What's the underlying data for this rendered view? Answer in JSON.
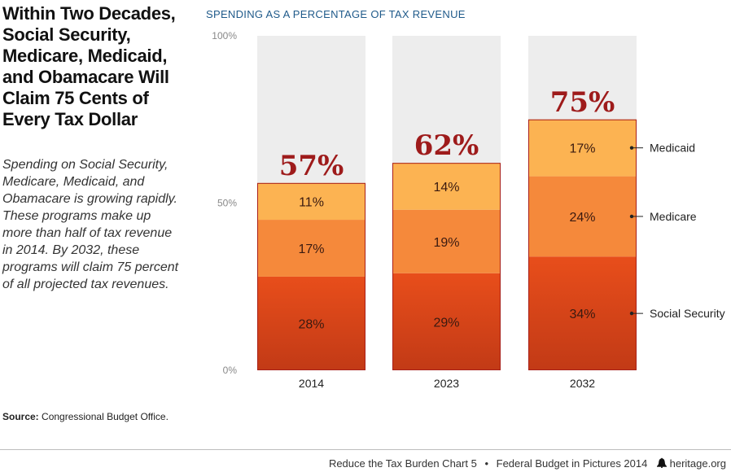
{
  "headline": "Within Two Decades, Social Security, Medicare, Medicaid, and Obamacare Will Claim 75 Cents of Every Tax Dollar",
  "description": "Spending on Social Security, Medicare, Medicaid, and Obamacare is growing rapidly. These programs make up more than half of tax revenue in 2014. By 2032, these programs will claim 75 percent of all projected tax revenues.",
  "source": {
    "label": "Source:",
    "text": "Congressional Budget Office."
  },
  "footer": {
    "chart_ref": "Reduce the Tax Burden Chart 5",
    "separator": "•",
    "publication": "Federal Budget in Pictures 2014",
    "site": "heritage.org",
    "logo_icon": "liberty-bell-icon"
  },
  "chart_data": {
    "type": "bar",
    "stacked": true,
    "title": "SPENDING AS A PERCENTAGE OF TAX REVENUE",
    "categories": [
      "2014",
      "2023",
      "2032"
    ],
    "ylim": [
      0,
      100
    ],
    "yticks": [
      0,
      50,
      100
    ],
    "ytick_labels": [
      "0%",
      "50%",
      "100%"
    ],
    "series": [
      {
        "name": "Social Security",
        "values": [
          28,
          29,
          34
        ],
        "labels": [
          "28%",
          "29%",
          "34%"
        ],
        "color": "#e84e1b"
      },
      {
        "name": "Medicare",
        "values": [
          17,
          19,
          24
        ],
        "labels": [
          "17%",
          "19%",
          "24%"
        ],
        "color": "#f5893b"
      },
      {
        "name": "Medicaid",
        "values": [
          11,
          14,
          17
        ],
        "labels": [
          "11%",
          "14%",
          "17%"
        ],
        "color": "#fcb352"
      }
    ],
    "totals": [
      "57%",
      "62%",
      "75%"
    ],
    "background_color": "#ededed",
    "border_color": "#a8201a",
    "legend_placement": "right"
  }
}
